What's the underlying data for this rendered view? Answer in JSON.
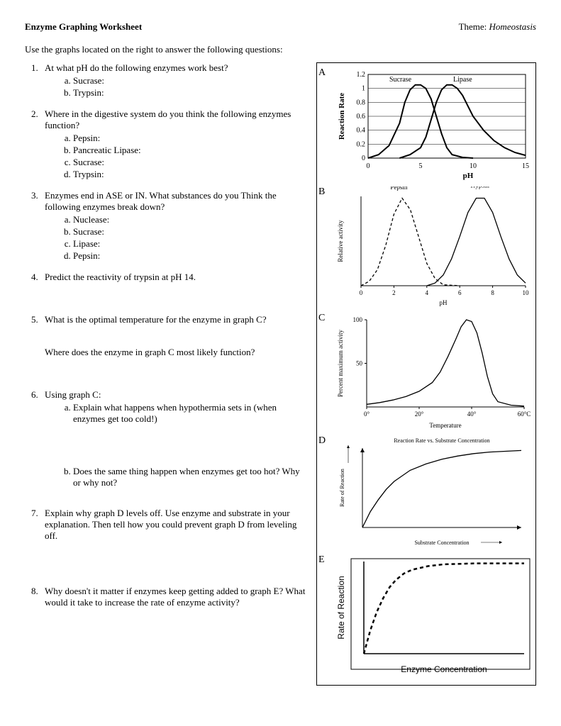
{
  "header": {
    "title": "Enzyme Graphing Worksheet",
    "theme_label": "Theme:",
    "theme_value": "Homeostasis"
  },
  "intro": "Use the graphs located on the right to answer the following questions:",
  "questions": {
    "q1": {
      "text": "At what pH do the following enzymes work best?",
      "a": "Sucrase:",
      "b": "Trypsin:"
    },
    "q2": {
      "text": "Where in the digestive system do you think the following enzymes function?",
      "a": "Pepsin:",
      "b": "Pancreatic Lipase:",
      "c": "Sucrase:",
      "d": "Trypsin:"
    },
    "q3": {
      "text": "Enzymes end in ASE or IN.  What substances do you Think the following enzymes break down?",
      "a": "Nuclease:",
      "b": "Sucrase:",
      "c": "Lipase:",
      "d": "Pepsin:"
    },
    "q4": {
      "text": "Predict the reactivity of trypsin at pH 14."
    },
    "q5": {
      "text": "What is the optimal temperature for the enzyme in graph C?",
      "sub": "Where does the enzyme in graph C most likely function?"
    },
    "q6": {
      "text": "Using graph C:",
      "a": "Explain what happens when hypothermia sets in (when enzymes get too cold!)",
      "b": "Does the same thing happen when enzymes get too hot?  Why or why not?"
    },
    "q7": {
      "text": "Explain why graph D levels off.  Use enzyme and substrate in your explanation.  Then tell how you could prevent graph D from leveling off."
    },
    "q8": {
      "text": "Why doesn't it matter if enzymes keep getting added to graph E?  What would it take to increase the rate of enzyme activity?"
    }
  },
  "graphs": {
    "A": {
      "label": "A",
      "type": "line",
      "xlabel": "pH",
      "ylabel": "Reaction Rate",
      "xlim": [
        0,
        15
      ],
      "xtick_step": 5,
      "ylim": [
        0,
        1.2
      ],
      "ytick_step": 0.2,
      "series": [
        {
          "name": "Sucrase",
          "color": "#000000",
          "stroke_width": 2,
          "points": [
            [
              0,
              0
            ],
            [
              1,
              0.05
            ],
            [
              2,
              0.18
            ],
            [
              3,
              0.5
            ],
            [
              3.5,
              0.8
            ],
            [
              4,
              0.98
            ],
            [
              4.5,
              1.05
            ],
            [
              5,
              1.05
            ],
            [
              5.5,
              1.0
            ],
            [
              6,
              0.85
            ],
            [
              6.5,
              0.6
            ],
            [
              7,
              0.35
            ],
            [
              7.5,
              0.15
            ],
            [
              8,
              0.05
            ],
            [
              9,
              0.01
            ],
            [
              10,
              0
            ]
          ]
        },
        {
          "name": "Lipase",
          "color": "#000000",
          "stroke_width": 2,
          "points": [
            [
              3,
              0
            ],
            [
              4,
              0.05
            ],
            [
              5,
              0.15
            ],
            [
              5.5,
              0.3
            ],
            [
              6,
              0.55
            ],
            [
              6.5,
              0.8
            ],
            [
              7,
              0.98
            ],
            [
              7.5,
              1.05
            ],
            [
              8,
              1.05
            ],
            [
              8.5,
              1.0
            ],
            [
              9,
              0.9
            ],
            [
              9.5,
              0.75
            ],
            [
              10,
              0.6
            ],
            [
              11,
              0.4
            ],
            [
              12,
              0.25
            ],
            [
              13,
              0.15
            ],
            [
              14,
              0.08
            ],
            [
              15,
              0.04
            ]
          ]
        }
      ],
      "legend": [
        "Sucrase",
        "Lipase"
      ],
      "border_color": "#000000",
      "grid_color": "#000000",
      "background": "#ffffff",
      "label_fontsize": 11,
      "tick_fontsize": 10
    },
    "B": {
      "label": "B",
      "type": "line",
      "xlabel": "pH",
      "ylabel": "Relative activity",
      "xlim": [
        0,
        10
      ],
      "xtick_step": 2,
      "series": [
        {
          "name": "Pepsin",
          "dash": "4,3",
          "color": "#000000",
          "stroke_width": 1.3,
          "points": [
            [
              0,
              0
            ],
            [
              0.5,
              0.05
            ],
            [
              1,
              0.18
            ],
            [
              1.5,
              0.45
            ],
            [
              2,
              0.8
            ],
            [
              2.5,
              0.98
            ],
            [
              3,
              0.85
            ],
            [
              3.5,
              0.55
            ],
            [
              4,
              0.25
            ],
            [
              4.5,
              0.08
            ],
            [
              5,
              0.01
            ],
            [
              6,
              0
            ]
          ]
        },
        {
          "name": "Trypsin",
          "color": "#000000",
          "stroke_width": 1.3,
          "points": [
            [
              4,
              0
            ],
            [
              4.5,
              0.03
            ],
            [
              5,
              0.12
            ],
            [
              5.5,
              0.3
            ],
            [
              6,
              0.55
            ],
            [
              6.5,
              0.82
            ],
            [
              7,
              0.98
            ],
            [
              7.5,
              0.98
            ],
            [
              8,
              0.82
            ],
            [
              8.5,
              0.55
            ],
            [
              9,
              0.3
            ],
            [
              9.5,
              0.12
            ],
            [
              10,
              0.03
            ]
          ]
        }
      ],
      "series_labels": {
        "Pepsin": [
          2.3,
          1.08
        ],
        "Trypsin": [
          7.2,
          1.1
        ]
      },
      "label_fontsize": 9,
      "tick_fontsize": 9
    },
    "C": {
      "label": "C",
      "type": "line",
      "xlabel": "Temperature",
      "ylabel": "Percent maximum activity",
      "xlim": [
        0,
        60
      ],
      "xticks": [
        0,
        20,
        40,
        60
      ],
      "xtick_labels": [
        "0°",
        "20°",
        "40°",
        "60°C"
      ],
      "ylim": [
        0,
        100
      ],
      "yticks": [
        50,
        100
      ],
      "series": [
        {
          "color": "#000000",
          "stroke_width": 1.3,
          "points": [
            [
              0,
              3
            ],
            [
              5,
              5
            ],
            [
              10,
              8
            ],
            [
              15,
              12
            ],
            [
              20,
              18
            ],
            [
              25,
              28
            ],
            [
              28,
              40
            ],
            [
              31,
              58
            ],
            [
              34,
              78
            ],
            [
              36,
              92
            ],
            [
              38,
              100
            ],
            [
              40,
              98
            ],
            [
              42,
              85
            ],
            [
              44,
              62
            ],
            [
              46,
              35
            ],
            [
              48,
              15
            ],
            [
              50,
              6
            ],
            [
              55,
              2
            ],
            [
              60,
              1
            ]
          ]
        }
      ],
      "label_fontsize": 9,
      "tick_fontsize": 9
    },
    "D": {
      "label": "D",
      "type": "line",
      "title": "Reaction Rate vs. Substrate Concentration",
      "xlabel": "Substrate Concentration",
      "ylabel": "Rate of Reaction",
      "series": [
        {
          "color": "#000000",
          "stroke_width": 1.3,
          "points": [
            [
              0,
              0
            ],
            [
              0.05,
              0.2
            ],
            [
              0.1,
              0.35
            ],
            [
              0.15,
              0.48
            ],
            [
              0.2,
              0.58
            ],
            [
              0.3,
              0.72
            ],
            [
              0.4,
              0.8
            ],
            [
              0.5,
              0.86
            ],
            [
              0.6,
              0.9
            ],
            [
              0.7,
              0.93
            ],
            [
              0.8,
              0.95
            ],
            [
              0.9,
              0.96
            ],
            [
              1.0,
              0.97
            ]
          ]
        }
      ],
      "arrow_axes": true,
      "label_fontsize": 8,
      "title_fontsize": 8
    },
    "E": {
      "label": "E",
      "type": "line",
      "xlabel": "Enzyme Concentration",
      "ylabel": "Rate of Reaction",
      "series": [
        {
          "color": "#000000",
          "stroke_width": 2.5,
          "dash": "5,4",
          "points": [
            [
              0,
              0
            ],
            [
              0.04,
              0.25
            ],
            [
              0.08,
              0.45
            ],
            [
              0.12,
              0.6
            ],
            [
              0.16,
              0.72
            ],
            [
              0.2,
              0.8
            ],
            [
              0.25,
              0.87
            ],
            [
              0.3,
              0.91
            ],
            [
              0.4,
              0.95
            ],
            [
              0.5,
              0.97
            ],
            [
              0.7,
              0.98
            ],
            [
              1.0,
              0.98
            ]
          ]
        }
      ],
      "box_border": "#000000",
      "label_fontsize": 12
    }
  }
}
